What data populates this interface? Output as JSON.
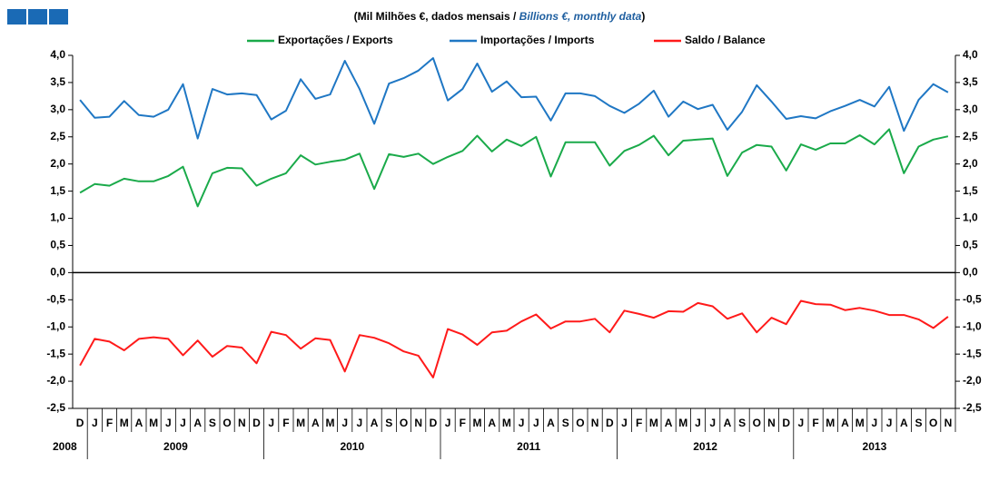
{
  "chart_data": {
    "type": "line",
    "title": [
      "(Mil Milhões €, dados mensais / ",
      "Billions  €, monthly data",
      ")"
    ],
    "category_groups": [
      {
        "label": "2008",
        "categories": [
          "D"
        ]
      },
      {
        "label": "2009",
        "categories": [
          "J",
          "F",
          "M",
          "A",
          "M",
          "J",
          "J",
          "A",
          "S",
          "O",
          "N",
          "D"
        ]
      },
      {
        "label": "2010",
        "categories": [
          "J",
          "F",
          "M",
          "A",
          "M",
          "J",
          "J",
          "A",
          "S",
          "O",
          "N",
          "D"
        ]
      },
      {
        "label": "2011",
        "categories": [
          "J",
          "F",
          "M",
          "A",
          "M",
          "J",
          "J",
          "A",
          "S",
          "O",
          "N",
          "D"
        ]
      },
      {
        "label": "2012",
        "categories": [
          "J",
          "F",
          "M",
          "A",
          "M",
          "J",
          "J",
          "A",
          "S",
          "O",
          "N",
          "D"
        ]
      },
      {
        "label": "2013",
        "categories": [
          "J",
          "F",
          "M",
          "A",
          "M",
          "J",
          "J",
          "A",
          "S",
          "O",
          "N"
        ]
      }
    ],
    "series": [
      {
        "name": "Exportações / Exports",
        "color": "#1aaa4a",
        "values": [
          1.47,
          1.63,
          1.6,
          1.73,
          1.68,
          1.68,
          1.78,
          1.95,
          1.22,
          1.83,
          1.93,
          1.92,
          1.6,
          1.73,
          1.83,
          2.16,
          1.99,
          2.04,
          2.08,
          2.19,
          1.54,
          2.18,
          2.13,
          2.19,
          2.0,
          2.13,
          2.24,
          2.52,
          2.23,
          2.45,
          2.33,
          2.5,
          1.77,
          2.4,
          2.4,
          2.4,
          1.97,
          2.24,
          2.35,
          2.52,
          2.16,
          2.43,
          2.45,
          2.47,
          1.78,
          2.21,
          2.35,
          2.32,
          1.88,
          2.36,
          2.26,
          2.38,
          2.38,
          2.53,
          2.36,
          2.64,
          1.83,
          2.32,
          2.45,
          2.51
        ]
      },
      {
        "name": "Importações / Imports",
        "color": "#1f77c4",
        "values": [
          3.18,
          2.85,
          2.87,
          3.16,
          2.9,
          2.87,
          3.0,
          3.47,
          2.47,
          3.38,
          3.28,
          3.3,
          3.27,
          2.82,
          2.98,
          3.56,
          3.2,
          3.28,
          3.9,
          3.38,
          2.74,
          3.48,
          3.58,
          3.72,
          3.95,
          3.17,
          3.38,
          3.85,
          3.33,
          3.52,
          3.23,
          3.24,
          2.8,
          3.3,
          3.3,
          3.25,
          3.07,
          2.94,
          3.11,
          3.35,
          2.87,
          3.15,
          3.01,
          3.09,
          2.63,
          2.96,
          3.45,
          3.15,
          2.83,
          2.88,
          2.84,
          2.97,
          3.07,
          3.18,
          3.06,
          3.42,
          2.61,
          3.18,
          3.47,
          3.32
        ]
      },
      {
        "name": "Saldo / Balance",
        "color": "#ff1a1a",
        "values": [
          -1.71,
          -1.22,
          -1.27,
          -1.43,
          -1.22,
          -1.19,
          -1.22,
          -1.52,
          -1.25,
          -1.55,
          -1.35,
          -1.38,
          -1.67,
          -1.09,
          -1.15,
          -1.4,
          -1.21,
          -1.24,
          -1.82,
          -1.15,
          -1.2,
          -1.3,
          -1.45,
          -1.53,
          -1.93,
          -1.04,
          -1.14,
          -1.33,
          -1.1,
          -1.07,
          -0.9,
          -0.77,
          -1.03,
          -0.9,
          -0.9,
          -0.85,
          -1.1,
          -0.7,
          -0.76,
          -0.83,
          -0.71,
          -0.72,
          -0.56,
          -0.62,
          -0.85,
          -0.75,
          -1.1,
          -0.83,
          -0.95,
          -0.52,
          -0.58,
          -0.59,
          -0.69,
          -0.65,
          -0.7,
          -0.78,
          -0.78,
          -0.86,
          -1.02,
          -0.81
        ]
      }
    ],
    "ylim": [
      -2.5,
      4.0
    ],
    "yticks": [
      {
        "value": -2.5,
        "label": "-2,5"
      },
      {
        "value": -2.0,
        "label": "-2,0"
      },
      {
        "value": -1.5,
        "label": "-1,5"
      },
      {
        "value": -1.0,
        "label": "-1,0"
      },
      {
        "value": -0.5,
        "label": "-0,5"
      },
      {
        "value": 0.0,
        "label": "0,0"
      },
      {
        "value": 0.5,
        "label": "0,5"
      },
      {
        "value": 1.0,
        "label": "1,0"
      },
      {
        "value": 1.5,
        "label": "1,5"
      },
      {
        "value": 2.0,
        "label": "2,0"
      },
      {
        "value": 2.5,
        "label": "2,5"
      },
      {
        "value": 3.0,
        "label": "3,0"
      },
      {
        "value": 3.5,
        "label": "3,5"
      },
      {
        "value": 4.0,
        "label": "4,0"
      }
    ],
    "y2lim": [
      -2.5,
      4.0
    ],
    "y2ticks": [
      {
        "value": -2.5,
        "label": "-2,5"
      },
      {
        "value": -2.0,
        "label": "-2,0"
      },
      {
        "value": -1.5,
        "label": "-1,5"
      },
      {
        "value": -1.0,
        "label": "-1,0"
      },
      {
        "value": -0.5,
        "label": "-0,5"
      },
      {
        "value": 0.0,
        "label": "0,0"
      },
      {
        "value": 0.5,
        "label": "0,5"
      },
      {
        "value": 1.0,
        "label": "1,0"
      },
      {
        "value": 1.5,
        "label": "1,5"
      },
      {
        "value": 2.0,
        "label": "2,0"
      },
      {
        "value": 2.5,
        "label": "2,5"
      },
      {
        "value": 3.0,
        "label": "3,0"
      },
      {
        "value": 3.5,
        "label": "3,5"
      },
      {
        "value": 4.0,
        "label": "4,0"
      }
    ],
    "legend": "top",
    "grid": false
  }
}
